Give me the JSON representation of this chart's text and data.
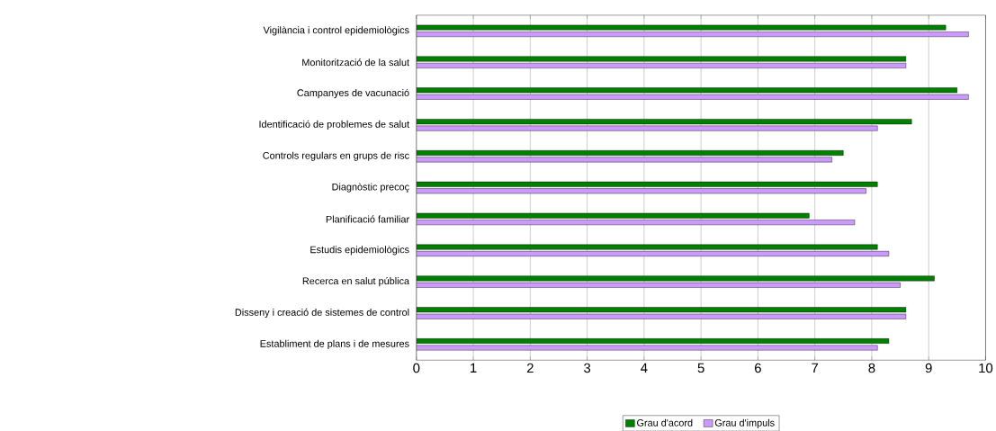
{
  "chart_data": {
    "type": "bar",
    "orientation": "horizontal",
    "categories": [
      "Vigilància i control epidemiològics",
      "Monitorització de la salut",
      "Campanyes de vacunació",
      "Identificació de problemes de salut",
      "Controls regulars en grups de risc",
      "Diagnòstic precoç",
      "Planificació familiar",
      "Estudis epidemiològics",
      "Recerca en salut pública",
      "Disseny i creació de sistemes de control",
      "Establiment de plans i de mesures"
    ],
    "series": [
      {
        "name": "Grau d'acord",
        "color": "#007f00",
        "values": [
          9.3,
          8.6,
          9.5,
          8.7,
          7.5,
          8.1,
          6.9,
          8.1,
          9.1,
          8.6,
          8.3
        ]
      },
      {
        "name": "Grau d'impuls",
        "color": "#cc99ff",
        "values": [
          9.7,
          8.6,
          9.7,
          8.1,
          7.3,
          7.9,
          7.7,
          8.3,
          8.5,
          8.6,
          8.1
        ]
      }
    ],
    "xlim": [
      0,
      10
    ],
    "xticks": [
      0,
      1,
      2,
      3,
      4,
      5,
      6,
      7,
      8,
      9,
      10
    ],
    "grid": "x",
    "legend": "bottom"
  }
}
